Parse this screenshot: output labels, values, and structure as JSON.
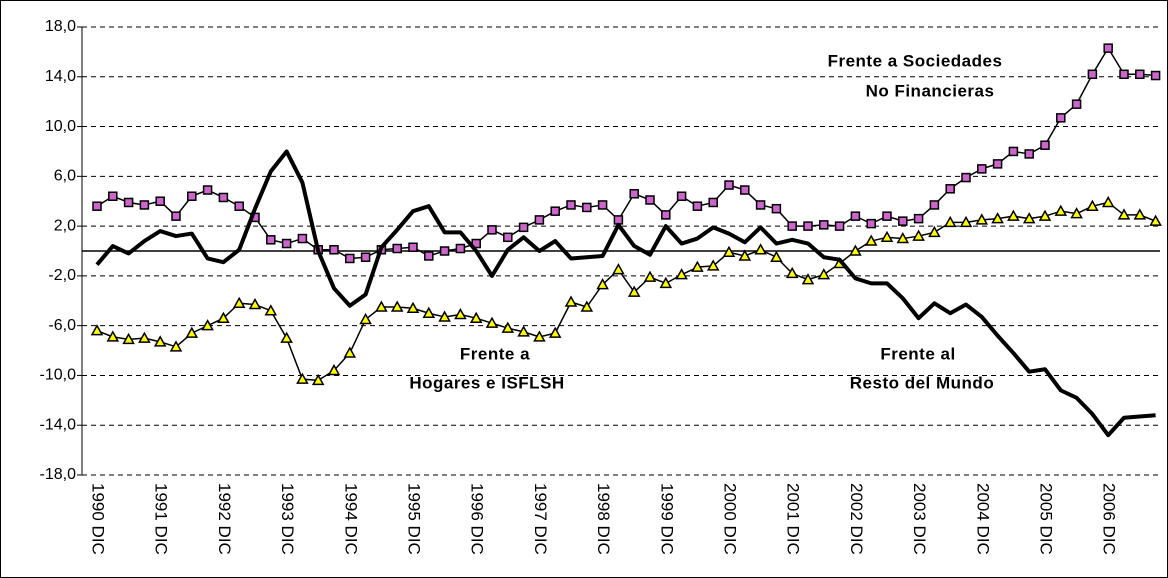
{
  "chart_data": {
    "type": "line",
    "categories": [
      "1990 DIC",
      null,
      null,
      null,
      "1991 DIC",
      null,
      null,
      null,
      "1992 DIC",
      null,
      null,
      null,
      "1993 DIC",
      null,
      null,
      null,
      "1994 DIC",
      null,
      null,
      null,
      "1995 DIC",
      null,
      null,
      null,
      "1996 DIC",
      null,
      null,
      null,
      "1997 DIC",
      null,
      null,
      null,
      "1998 DIC",
      null,
      null,
      null,
      "1999 DIC",
      null,
      null,
      null,
      "2000 DIC",
      null,
      null,
      null,
      "2001 DIC",
      null,
      null,
      null,
      "2002 DIC",
      null,
      null,
      null,
      "2003 DIC",
      null,
      null,
      null,
      "2004 DIC",
      null,
      null,
      null,
      "2005 DIC",
      null,
      null,
      null,
      "2006 DIC",
      null,
      null,
      null
    ],
    "series": [
      {
        "name": "Frente a Sociedades No Financieras",
        "color": "#cc66cc",
        "marker": "square",
        "values": [
          3.6,
          4.4,
          3.9,
          3.7,
          4.0,
          2.8,
          4.4,
          4.9,
          4.3,
          3.6,
          2.7,
          0.9,
          0.6,
          1.0,
          0.1,
          0.1,
          -0.6,
          -0.5,
          0.1,
          0.2,
          0.3,
          -0.4,
          0.0,
          0.2,
          0.6,
          1.7,
          1.1,
          1.9,
          2.5,
          3.2,
          3.7,
          3.5,
          3.7,
          2.5,
          4.6,
          4.1,
          2.9,
          4.4,
          3.6,
          3.9,
          5.3,
          4.9,
          3.7,
          3.4,
          2.0,
          2.0,
          2.1,
          2.0,
          2.8,
          2.2,
          2.8,
          2.4,
          2.6,
          3.7,
          5.0,
          5.9,
          6.6,
          7.0,
          8.0,
          7.8,
          8.5,
          10.7,
          11.8,
          14.2,
          16.3,
          14.2,
          14.2,
          14.1
        ]
      },
      {
        "name": "Frente a Hogares e ISFLSH",
        "color": "#ffff00",
        "marker": "triangle",
        "values": [
          -6.4,
          -6.9,
          -7.1,
          -7.0,
          -7.3,
          -7.7,
          -6.6,
          -6.0,
          -5.4,
          -4.2,
          -4.3,
          -4.8,
          -7.0,
          -10.3,
          -10.4,
          -9.6,
          -8.2,
          -5.5,
          -4.5,
          -4.5,
          -4.6,
          -5.0,
          -5.3,
          -5.1,
          -5.4,
          -5.8,
          -6.2,
          -6.5,
          -6.9,
          -6.6,
          -4.1,
          -4.5,
          -2.7,
          -1.5,
          -3.3,
          -2.1,
          -2.6,
          -1.9,
          -1.3,
          -1.2,
          -0.1,
          -0.4,
          0.1,
          -0.5,
          -1.8,
          -2.3,
          -1.9,
          -1.0,
          0.0,
          0.8,
          1.1,
          1.0,
          1.2,
          1.5,
          2.3,
          2.3,
          2.5,
          2.6,
          2.8,
          2.6,
          2.8,
          3.2,
          3.0,
          3.6,
          3.9,
          2.9,
          2.9,
          2.4
        ]
      },
      {
        "name": "Frente al Resto del Mundo",
        "color": "#000000",
        "marker": "none",
        "values": [
          -1.1,
          0.4,
          -0.2,
          0.8,
          1.6,
          1.2,
          1.4,
          -0.6,
          -0.9,
          0.1,
          3.4,
          6.4,
          8.0,
          5.5,
          0.0,
          -3.0,
          -4.4,
          -3.5,
          0.3,
          1.7,
          3.2,
          3.6,
          1.5,
          1.5,
          0.0,
          -2.0,
          0.1,
          1.1,
          0.0,
          0.8,
          -0.6,
          -0.5,
          -0.4,
          2.1,
          0.4,
          -0.3,
          2.0,
          0.6,
          1.0,
          1.9,
          1.4,
          0.7,
          1.9,
          0.6,
          0.9,
          0.6,
          -0.5,
          -0.7,
          -2.2,
          -2.6,
          -2.6,
          -3.8,
          -5.4,
          -4.2,
          -5.0,
          -4.3,
          -5.3,
          -6.8,
          -8.2,
          -9.7,
          -9.5,
          -11.2,
          -11.8,
          -13.1,
          -14.8,
          -13.4,
          -13.3,
          -13.2
        ]
      }
    ],
    "annotations": [
      "Frente a Sociedades",
      "No Financieras",
      "Frente a",
      "Hogares e ISFLSH",
      "Frente al",
      "Resto del Mundo"
    ],
    "ylim": [
      -18,
      18
    ],
    "yticks": [
      {
        "value": -18,
        "label": "-18,0"
      },
      {
        "value": -14,
        "label": "-14,0"
      },
      {
        "value": -10,
        "label": "-10,0"
      },
      {
        "value": -6,
        "label": "-6,0"
      },
      {
        "value": -2,
        "label": "-2,0"
      },
      {
        "value": 2,
        "label": "2,0"
      },
      {
        "value": 6,
        "label": "6,0"
      },
      {
        "value": 10,
        "label": "10,0"
      },
      {
        "value": 14,
        "label": "14,0"
      },
      {
        "value": 18,
        "label": "18,0"
      }
    ],
    "grid": true
  }
}
